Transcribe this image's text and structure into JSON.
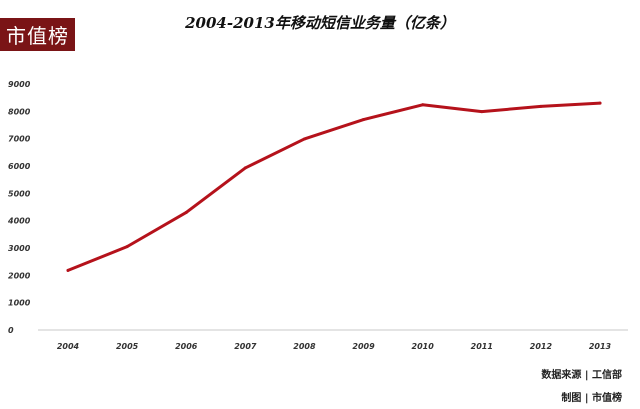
{
  "brand": {
    "logo_text": "市值榜"
  },
  "chart_data": {
    "type": "line",
    "title": "2004-2013年移动短信业务量（亿条）",
    "categories": [
      "2004",
      "2005",
      "2006",
      "2007",
      "2008",
      "2009",
      "2010",
      "2011",
      "2012",
      "2013"
    ],
    "series": [
      {
        "values": [
          2180,
          3050,
          4300,
          5930,
          6990,
          7700,
          8240,
          7990,
          8180,
          8300
        ]
      }
    ],
    "yticks": [
      "0",
      "1000",
      "2000",
      "3000",
      "4000",
      "5000",
      "6000",
      "7000",
      "8000",
      "9000"
    ],
    "ylim": [
      0,
      9000
    ],
    "grid": false,
    "line_color": "#b5121b"
  },
  "footer": {
    "source": "数据来源 | 工信部",
    "made_by": "制图 | 市值榜"
  }
}
